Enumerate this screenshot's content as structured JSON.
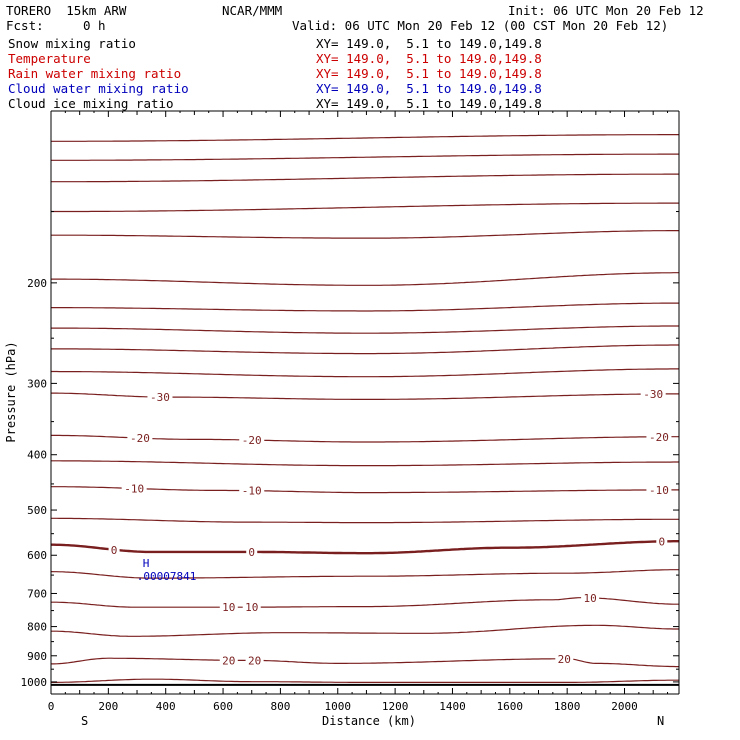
{
  "header": {
    "model": "TORERO  15km ARW",
    "center": "NCAR/MMM",
    "init": "Init: 06 UTC Mon 20 Feb 12",
    "fcst_label": "Fcst:",
    "fcst_value": "0 h",
    "valid": "Valid: 06 UTC Mon 20 Feb 12 (00 CST Mon 20 Feb 12)"
  },
  "legend": [
    {
      "field": "Snow mixing ratio",
      "xy": "XY= 149.0,  5.1 to 149.0,149.8",
      "color": "#000000"
    },
    {
      "field": "Temperature",
      "xy": "XY= 149.0,  5.1 to 149.0,149.8",
      "color": "#cc0000"
    },
    {
      "field": "Rain water mixing ratio",
      "xy": "XY= 149.0,  5.1 to 149.0,149.8",
      "color": "#cc0000"
    },
    {
      "field": "Cloud water mixing ratio",
      "xy": "XY= 149.0,  5.1 to 149.0,149.8",
      "color": "#0000bb"
    },
    {
      "field": "Cloud ice mixing ratio",
      "xy": "XY= 149.0,  5.1 to 149.0,149.8",
      "color": "#000000"
    }
  ],
  "chart_data": {
    "type": "line",
    "title": "",
    "xlabel": "Distance (km)",
    "ylabel": "Pressure (hPa)",
    "xlim": [
      0,
      2190
    ],
    "ylim": [
      100,
      1050
    ],
    "y_scale": "log",
    "grid": false,
    "x_ticks": [
      0,
      200,
      400,
      600,
      800,
      1000,
      1200,
      1400,
      1600,
      1800,
      2000
    ],
    "y_ticks": [
      200,
      300,
      400,
      500,
      600,
      700,
      800,
      900,
      1000
    ],
    "endpoint_labels": {
      "left": "S",
      "right": "N"
    },
    "line_color": "#7a1f1f",
    "ground_pressure": 1012,
    "cloud_water_max": {
      "label": "H",
      "value": ".00007841",
      "x": 320,
      "p": 600,
      "color": "#0000bb"
    },
    "series": [
      {
        "x": [
          0,
          2190
        ],
        "p": [
          113,
          110
        ]
      },
      {
        "x": [
          0,
          2190
        ],
        "p": [
          122,
          119
        ]
      },
      {
        "x": [
          0,
          2190
        ],
        "p": [
          133,
          129
        ]
      },
      {
        "x": [
          0,
          2190
        ],
        "p": [
          150,
          145
        ]
      },
      {
        "x": [
          0,
          1100,
          2190
        ],
        "p": [
          165,
          167,
          162
        ]
      },
      {
        "x": [
          0,
          1100,
          2190
        ],
        "p": [
          197,
          202,
          192
        ]
      },
      {
        "x": [
          0,
          1100,
          2190
        ],
        "p": [
          221,
          224,
          217
        ]
      },
      {
        "x": [
          0,
          1100,
          2190
        ],
        "p": [
          240,
          245,
          238
        ]
      },
      {
        "x": [
          0,
          1100,
          2190
        ],
        "p": [
          261,
          266,
          257
        ]
      },
      {
        "x": [
          0,
          1100,
          2190
        ],
        "p": [
          286,
          292,
          283
        ]
      },
      {
        "x": [
          0,
          400,
          1100,
          2190
        ],
        "p": [
          312,
          317,
          320,
          313
        ],
        "label": "-30",
        "label_x": [
          380,
          2100
        ]
      },
      {
        "x": [
          0,
          500,
          1100,
          2190
        ],
        "p": [
          370,
          376,
          380,
          372
        ],
        "label": "-20",
        "label_x": [
          310,
          700,
          2120
        ]
      },
      {
        "x": [
          0,
          1100,
          2190
        ],
        "p": [
          410,
          418,
          412
        ]
      },
      {
        "x": [
          0,
          600,
          1100,
          2190
        ],
        "p": [
          455,
          462,
          466,
          461
        ],
        "label": "-10",
        "label_x": [
          290,
          700,
          2120
        ]
      },
      {
        "x": [
          0,
          700,
          1100,
          2190
        ],
        "p": [
          517,
          525,
          526,
          519
        ]
      },
      {
        "x": [
          0,
          350,
          700,
          1100,
          1600,
          2190
        ],
        "p": [
          575,
          592,
          592,
          595,
          582,
          567
        ],
        "label": "0",
        "label_x": [
          220,
          700,
          2130
        ],
        "emphasis": true
      },
      {
        "x": [
          0,
          350,
          1100,
          1800,
          2190
        ],
        "p": [
          641,
          658,
          653,
          645,
          636
        ]
      },
      {
        "x": [
          0,
          300,
          600,
          1100,
          1750,
          1850,
          2190
        ],
        "p": [
          725,
          740,
          740,
          738,
          718,
          712,
          731
        ],
        "label": "10",
        "label_x": [
          620,
          700,
          1880
        ]
      },
      {
        "x": [
          0,
          280,
          800,
          1300,
          1900,
          2190
        ],
        "p": [
          815,
          832,
          820,
          822,
          796,
          808
        ]
      },
      {
        "x": [
          0,
          200,
          700,
          1000,
          1800,
          1900,
          2190
        ],
        "p": [
          930,
          909,
          917,
          928,
          911,
          928,
          940
        ],
        "label": "20",
        "label_x": [
          620,
          710,
          1790
        ]
      },
      {
        "x": [
          0,
          350,
          700,
          1100,
          1800,
          2190
        ],
        "p": [
          1002,
          989,
          999,
          1002,
          1002,
          993
        ]
      }
    ]
  }
}
